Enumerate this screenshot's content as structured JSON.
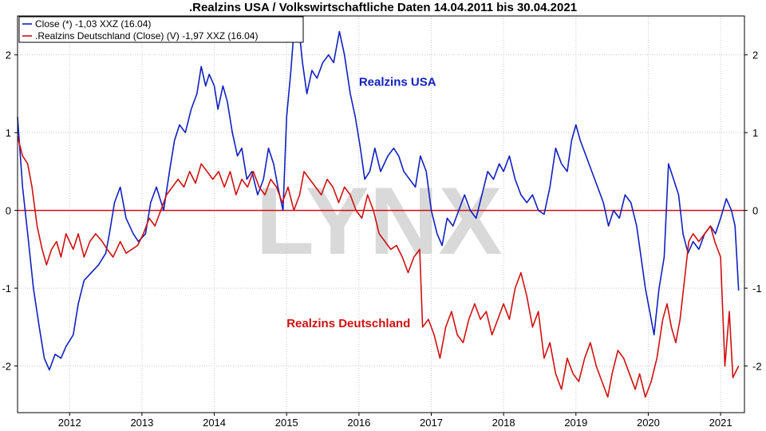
{
  "chart_data": {
    "type": "line",
    "title": ".Realzins USA / Volkswirtschaftliche Daten 14.04.2011 bis 30.04.2021",
    "ylim": [
      -2.6,
      2.5
    ],
    "y_ticks": [
      2,
      1,
      0,
      -1,
      -2
    ],
    "x_ticks": [
      "2012",
      "2013",
      "2014",
      "2015",
      "2016",
      "2017",
      "2018",
      "2019",
      "2020",
      "2021"
    ],
    "xlim": [
      2011.28,
      2021.33
    ],
    "grid": true,
    "zero_line": 0,
    "legend_position": "top-left",
    "watermark": "LYNX",
    "series": [
      {
        "name": "Close (*) -1,03 XXZ (16.04)",
        "label": "Realzins USA",
        "color": "#1020c0",
        "points": [
          [
            2011.28,
            1.2
          ],
          [
            2011.35,
            0.3
          ],
          [
            2011.42,
            -0.3
          ],
          [
            2011.5,
            -1.0
          ],
          [
            2011.58,
            -1.5
          ],
          [
            2011.65,
            -1.9
          ],
          [
            2011.72,
            -2.05
          ],
          [
            2011.8,
            -1.85
          ],
          [
            2011.88,
            -1.9
          ],
          [
            2011.95,
            -1.75
          ],
          [
            2012.05,
            -1.6
          ],
          [
            2012.12,
            -1.2
          ],
          [
            2012.2,
            -0.9
          ],
          [
            2012.3,
            -0.8
          ],
          [
            2012.4,
            -0.7
          ],
          [
            2012.5,
            -0.55
          ],
          [
            2012.55,
            -0.3
          ],
          [
            2012.62,
            0.1
          ],
          [
            2012.7,
            0.3
          ],
          [
            2012.78,
            -0.1
          ],
          [
            2012.88,
            -0.3
          ],
          [
            2012.95,
            -0.4
          ],
          [
            2013.05,
            -0.3
          ],
          [
            2013.12,
            0.1
          ],
          [
            2013.2,
            0.3
          ],
          [
            2013.3,
            0.0
          ],
          [
            2013.38,
            0.5
          ],
          [
            2013.45,
            0.9
          ],
          [
            2013.52,
            1.1
          ],
          [
            2013.6,
            1.0
          ],
          [
            2013.68,
            1.3
          ],
          [
            2013.76,
            1.5
          ],
          [
            2013.82,
            1.85
          ],
          [
            2013.88,
            1.6
          ],
          [
            2013.93,
            1.75
          ],
          [
            2014.0,
            1.6
          ],
          [
            2014.05,
            1.3
          ],
          [
            2014.12,
            1.6
          ],
          [
            2014.18,
            1.4
          ],
          [
            2014.25,
            1.0
          ],
          [
            2014.32,
            0.7
          ],
          [
            2014.38,
            0.8
          ],
          [
            2014.45,
            0.4
          ],
          [
            2014.52,
            0.5
          ],
          [
            2014.6,
            0.2
          ],
          [
            2014.68,
            0.4
          ],
          [
            2014.75,
            0.8
          ],
          [
            2014.82,
            0.6
          ],
          [
            2014.88,
            0.3
          ],
          [
            2014.95,
            0.0
          ],
          [
            2015.0,
            1.2
          ],
          [
            2015.06,
            1.8
          ],
          [
            2015.1,
            2.3
          ],
          [
            2015.17,
            2.35
          ],
          [
            2015.22,
            1.9
          ],
          [
            2015.28,
            1.5
          ],
          [
            2015.35,
            1.8
          ],
          [
            2015.42,
            1.7
          ],
          [
            2015.5,
            1.9
          ],
          [
            2015.58,
            2.0
          ],
          [
            2015.65,
            1.9
          ],
          [
            2015.73,
            2.3
          ],
          [
            2015.8,
            2.0
          ],
          [
            2015.88,
            1.5
          ],
          [
            2015.95,
            1.2
          ],
          [
            2016.02,
            0.8
          ],
          [
            2016.08,
            0.4
          ],
          [
            2016.15,
            0.5
          ],
          [
            2016.22,
            0.8
          ],
          [
            2016.3,
            0.5
          ],
          [
            2016.4,
            0.7
          ],
          [
            2016.48,
            0.8
          ],
          [
            2016.55,
            0.7
          ],
          [
            2016.62,
            0.5
          ],
          [
            2016.7,
            0.4
          ],
          [
            2016.78,
            0.3
          ],
          [
            2016.85,
            0.7
          ],
          [
            2016.93,
            0.5
          ],
          [
            2017.0,
            0.0
          ],
          [
            2017.08,
            -0.3
          ],
          [
            2017.15,
            -0.45
          ],
          [
            2017.22,
            -0.1
          ],
          [
            2017.3,
            -0.2
          ],
          [
            2017.38,
            0.0
          ],
          [
            2017.46,
            0.2
          ],
          [
            2017.54,
            0.0
          ],
          [
            2017.62,
            -0.1
          ],
          [
            2017.7,
            0.2
          ],
          [
            2017.78,
            0.5
          ],
          [
            2017.86,
            0.4
          ],
          [
            2017.94,
            0.6
          ],
          [
            2018.0,
            0.5
          ],
          [
            2018.08,
            0.7
          ],
          [
            2018.16,
            0.4
          ],
          [
            2018.24,
            0.2
          ],
          [
            2018.32,
            0.1
          ],
          [
            2018.4,
            0.2
          ],
          [
            2018.48,
            0.0
          ],
          [
            2018.56,
            -0.05
          ],
          [
            2018.64,
            0.3
          ],
          [
            2018.72,
            0.8
          ],
          [
            2018.8,
            0.6
          ],
          [
            2018.88,
            0.5
          ],
          [
            2018.94,
            0.9
          ],
          [
            2019.0,
            1.1
          ],
          [
            2019.06,
            0.9
          ],
          [
            2019.14,
            0.7
          ],
          [
            2019.22,
            0.5
          ],
          [
            2019.3,
            0.3
          ],
          [
            2019.38,
            0.1
          ],
          [
            2019.45,
            -0.2
          ],
          [
            2019.52,
            0.0
          ],
          [
            2019.6,
            -0.1
          ],
          [
            2019.68,
            0.2
          ],
          [
            2019.76,
            0.1
          ],
          [
            2019.84,
            -0.2
          ],
          [
            2019.9,
            -0.6
          ],
          [
            2019.96,
            -1.0
          ],
          [
            2020.02,
            -1.3
          ],
          [
            2020.08,
            -1.6
          ],
          [
            2020.15,
            -1.0
          ],
          [
            2020.22,
            -0.6
          ],
          [
            2020.28,
            0.6
          ],
          [
            2020.35,
            0.4
          ],
          [
            2020.42,
            0.2
          ],
          [
            2020.48,
            -0.3
          ],
          [
            2020.55,
            -0.55
          ],
          [
            2020.62,
            -0.4
          ],
          [
            2020.7,
            -0.5
          ],
          [
            2020.78,
            -0.3
          ],
          [
            2020.86,
            -0.2
          ],
          [
            2020.93,
            -0.3
          ],
          [
            2021.0,
            -0.1
          ],
          [
            2021.08,
            0.15
          ],
          [
            2021.15,
            0.0
          ],
          [
            2021.2,
            -0.2
          ],
          [
            2021.25,
            -1.03
          ]
        ]
      },
      {
        "name": ".Realzins Deutschland (Close) (V) -1,97 XXZ (16.04)",
        "label": "Realzins Deutschland",
        "color": "#d01010",
        "points": [
          [
            2011.28,
            0.95
          ],
          [
            2011.35,
            0.7
          ],
          [
            2011.42,
            0.6
          ],
          [
            2011.48,
            0.3
          ],
          [
            2011.55,
            -0.2
          ],
          [
            2011.62,
            -0.5
          ],
          [
            2011.68,
            -0.7
          ],
          [
            2011.75,
            -0.5
          ],
          [
            2011.82,
            -0.4
          ],
          [
            2011.88,
            -0.6
          ],
          [
            2011.95,
            -0.3
          ],
          [
            2012.05,
            -0.5
          ],
          [
            2012.12,
            -0.3
          ],
          [
            2012.2,
            -0.6
          ],
          [
            2012.28,
            -0.4
          ],
          [
            2012.36,
            -0.3
          ],
          [
            2012.45,
            -0.4
          ],
          [
            2012.52,
            -0.5
          ],
          [
            2012.6,
            -0.6
          ],
          [
            2012.7,
            -0.4
          ],
          [
            2012.78,
            -0.55
          ],
          [
            2012.86,
            -0.5
          ],
          [
            2012.94,
            -0.45
          ],
          [
            2013.02,
            -0.3
          ],
          [
            2013.1,
            -0.1
          ],
          [
            2013.18,
            -0.2
          ],
          [
            2013.26,
            0.0
          ],
          [
            2013.34,
            0.2
          ],
          [
            2013.42,
            0.3
          ],
          [
            2013.5,
            0.4
          ],
          [
            2013.58,
            0.3
          ],
          [
            2013.66,
            0.5
          ],
          [
            2013.74,
            0.35
          ],
          [
            2013.82,
            0.6
          ],
          [
            2013.9,
            0.5
          ],
          [
            2013.98,
            0.4
          ],
          [
            2014.06,
            0.5
          ],
          [
            2014.14,
            0.3
          ],
          [
            2014.22,
            0.5
          ],
          [
            2014.3,
            0.2
          ],
          [
            2014.38,
            0.4
          ],
          [
            2014.46,
            0.3
          ],
          [
            2014.54,
            0.5
          ],
          [
            2014.62,
            0.3
          ],
          [
            2014.7,
            0.2
          ],
          [
            2014.78,
            0.4
          ],
          [
            2014.86,
            0.3
          ],
          [
            2014.94,
            0.1
          ],
          [
            2015.02,
            0.3
          ],
          [
            2015.1,
            0.0
          ],
          [
            2015.18,
            0.2
          ],
          [
            2015.24,
            0.5
          ],
          [
            2015.32,
            0.4
          ],
          [
            2015.4,
            0.3
          ],
          [
            2015.48,
            0.2
          ],
          [
            2015.56,
            0.4
          ],
          [
            2015.64,
            0.3
          ],
          [
            2015.72,
            0.1
          ],
          [
            2015.8,
            0.3
          ],
          [
            2015.88,
            0.2
          ],
          [
            2015.96,
            0.0
          ],
          [
            2016.04,
            -0.1
          ],
          [
            2016.12,
            0.2
          ],
          [
            2016.2,
            0.0
          ],
          [
            2016.28,
            -0.3
          ],
          [
            2016.36,
            -0.4
          ],
          [
            2016.44,
            -0.5
          ],
          [
            2016.52,
            -0.45
          ],
          [
            2016.6,
            -0.6
          ],
          [
            2016.68,
            -0.8
          ],
          [
            2016.76,
            -0.6
          ],
          [
            2016.84,
            -0.5
          ],
          [
            2016.88,
            -1.5
          ],
          [
            2016.96,
            -1.4
          ],
          [
            2017.04,
            -1.6
          ],
          [
            2017.12,
            -1.9
          ],
          [
            2017.2,
            -1.5
          ],
          [
            2017.28,
            -1.3
          ],
          [
            2017.36,
            -1.6
          ],
          [
            2017.44,
            -1.7
          ],
          [
            2017.52,
            -1.4
          ],
          [
            2017.6,
            -1.2
          ],
          [
            2017.68,
            -1.4
          ],
          [
            2017.76,
            -1.3
          ],
          [
            2017.84,
            -1.6
          ],
          [
            2017.92,
            -1.4
          ],
          [
            2018.0,
            -1.2
          ],
          [
            2018.08,
            -1.4
          ],
          [
            2018.16,
            -1.0
          ],
          [
            2018.24,
            -0.8
          ],
          [
            2018.32,
            -1.1
          ],
          [
            2018.4,
            -1.5
          ],
          [
            2018.48,
            -1.3
          ],
          [
            2018.56,
            -1.9
          ],
          [
            2018.64,
            -1.7
          ],
          [
            2018.72,
            -2.1
          ],
          [
            2018.8,
            -2.3
          ],
          [
            2018.88,
            -1.9
          ],
          [
            2018.96,
            -2.1
          ],
          [
            2019.04,
            -2.2
          ],
          [
            2019.12,
            -1.9
          ],
          [
            2019.2,
            -1.7
          ],
          [
            2019.28,
            -2.0
          ],
          [
            2019.36,
            -2.2
          ],
          [
            2019.44,
            -2.4
          ],
          [
            2019.5,
            -2.1
          ],
          [
            2019.58,
            -1.8
          ],
          [
            2019.66,
            -1.9
          ],
          [
            2019.74,
            -2.1
          ],
          [
            2019.82,
            -2.3
          ],
          [
            2019.88,
            -2.1
          ],
          [
            2019.96,
            -2.4
          ],
          [
            2020.04,
            -2.2
          ],
          [
            2020.12,
            -1.9
          ],
          [
            2020.2,
            -1.4
          ],
          [
            2020.26,
            -1.2
          ],
          [
            2020.32,
            -1.5
          ],
          [
            2020.38,
            -1.7
          ],
          [
            2020.44,
            -1.4
          ],
          [
            2020.5,
            -0.9
          ],
          [
            2020.56,
            -0.4
          ],
          [
            2020.62,
            -0.3
          ],
          [
            2020.7,
            -0.4
          ],
          [
            2020.78,
            -0.3
          ],
          [
            2020.86,
            -0.2
          ],
          [
            2020.92,
            -0.4
          ],
          [
            2021.0,
            -0.6
          ],
          [
            2021.06,
            -2.0
          ],
          [
            2021.12,
            -1.3
          ],
          [
            2021.17,
            -2.15
          ],
          [
            2021.25,
            -2.0
          ]
        ]
      }
    ],
    "annotations": [
      {
        "text": "Realzins USA",
        "x": 2016.0,
        "y": 1.6,
        "series": 0
      },
      {
        "text": "Realzins Deutschland",
        "x": 2015.0,
        "y": -1.5,
        "series": 1
      }
    ]
  }
}
